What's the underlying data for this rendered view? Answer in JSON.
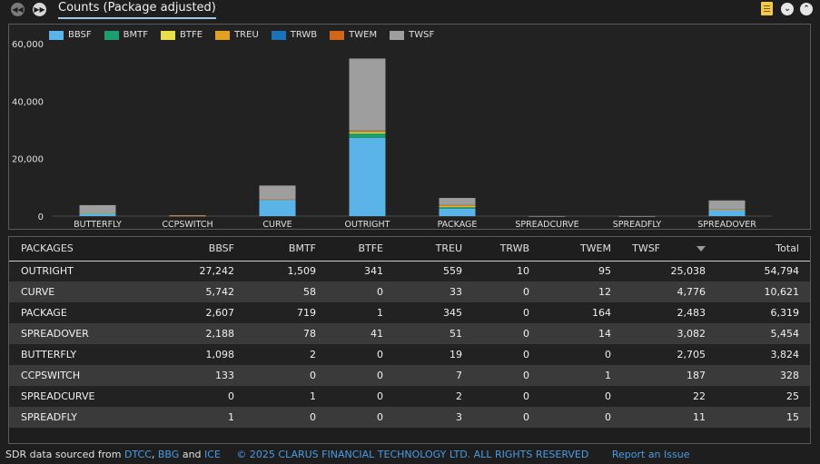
{
  "header": {
    "title": "Counts (Package adjusted)",
    "prev_icon": "double-chevron-left-icon",
    "next_icon": "double-chevron-right-icon",
    "export_icon": "export-icon",
    "collapse_icon": "chevron-down-icon",
    "expand_icon": "chevron-up-icon"
  },
  "colors": {
    "BBSF": "#5ab4e8",
    "BMTF": "#1e9e6e",
    "BTFE": "#e8e04a",
    "TREU": "#e0a020",
    "TRWB": "#1a72b8",
    "TWEM": "#d0661a",
    "TWSF": "#9e9e9e"
  },
  "chart_data": {
    "type": "bar",
    "stacked": true,
    "categories": [
      "BUTTERFLY",
      "CCPSWITCH",
      "CURVE",
      "OUTRIGHT",
      "PACKAGE",
      "SPREADCURVE",
      "SPREADFLY",
      "SPREADOVER"
    ],
    "series": [
      {
        "name": "BBSF",
        "values": [
          1098,
          133,
          5742,
          27242,
          2607,
          0,
          1,
          2188
        ]
      },
      {
        "name": "BMTF",
        "values": [
          2,
          0,
          58,
          1509,
          719,
          1,
          0,
          78
        ]
      },
      {
        "name": "BTFE",
        "values": [
          0,
          0,
          0,
          341,
          1,
          0,
          0,
          41
        ]
      },
      {
        "name": "TREU",
        "values": [
          19,
          7,
          33,
          559,
          345,
          2,
          3,
          51
        ]
      },
      {
        "name": "TRWB",
        "values": [
          0,
          0,
          0,
          10,
          0,
          0,
          0,
          0
        ]
      },
      {
        "name": "TWEM",
        "values": [
          0,
          1,
          12,
          95,
          164,
          0,
          0,
          14
        ]
      },
      {
        "name": "TWSF",
        "values": [
          2705,
          187,
          4776,
          25038,
          2483,
          22,
          11,
          3082
        ]
      }
    ],
    "ylim": [
      0,
      60000
    ],
    "yticks": [
      "60,000",
      "40,000",
      "20,000",
      "0"
    ],
    "ytick_values": [
      60000,
      40000,
      20000,
      0
    ],
    "legend_position": "top-left",
    "grid": false
  },
  "table": {
    "columns": [
      "PACKAGES",
      "BBSF",
      "BMTF",
      "BTFE",
      "TREU",
      "TRWB",
      "TWEM",
      "TWSF",
      "Total"
    ],
    "sorted_column_icon": "sort-desc-icon",
    "rows": [
      [
        "OUTRIGHT",
        "27,242",
        "1,509",
        "341",
        "559",
        "10",
        "95",
        "25,038",
        "54,794"
      ],
      [
        "CURVE",
        "5,742",
        "58",
        "0",
        "33",
        "0",
        "12",
        "4,776",
        "10,621"
      ],
      [
        "PACKAGE",
        "2,607",
        "719",
        "1",
        "345",
        "0",
        "164",
        "2,483",
        "6,319"
      ],
      [
        "SPREADOVER",
        "2,188",
        "78",
        "41",
        "51",
        "0",
        "14",
        "3,082",
        "5,454"
      ],
      [
        "BUTTERFLY",
        "1,098",
        "2",
        "0",
        "19",
        "0",
        "0",
        "2,705",
        "3,824"
      ],
      [
        "CCPSWITCH",
        "133",
        "0",
        "0",
        "7",
        "0",
        "1",
        "187",
        "328"
      ],
      [
        "SPREADCURVE",
        "0",
        "1",
        "0",
        "2",
        "0",
        "0",
        "22",
        "25"
      ],
      [
        "SPREADFLY",
        "1",
        "0",
        "0",
        "3",
        "0",
        "0",
        "11",
        "15"
      ]
    ]
  },
  "footer": {
    "source_prefix": "SDR data sourced from",
    "link_dtcc": "DTCC",
    "sep1": ",",
    "link_bbg": "BBG",
    "and": "and",
    "link_ice": "ICE",
    "copyright": "© 2025 CLARUS FINANCIAL TECHNOLOGY LTD. ALL RIGHTS RESERVED",
    "report": "Report an Issue"
  }
}
